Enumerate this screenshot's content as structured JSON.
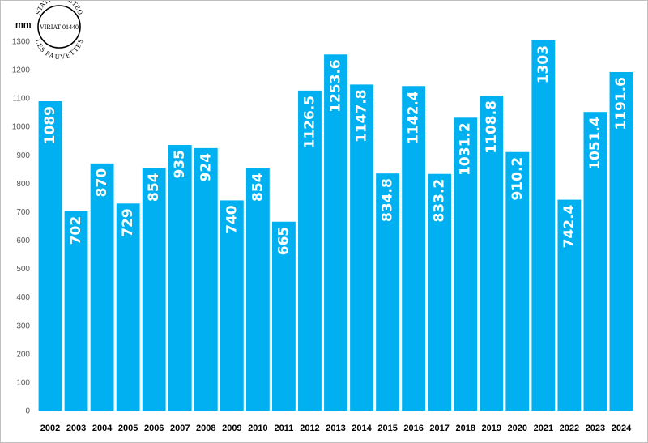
{
  "chart_data": {
    "type": "bar",
    "title": "",
    "xlabel": "",
    "ylabel": "mm",
    "ylim": [
      0,
      1300
    ],
    "yticks": [
      0,
      100,
      200,
      300,
      400,
      500,
      600,
      700,
      800,
      900,
      1000,
      1100,
      1200,
      1300
    ],
    "grid": false,
    "legend": "none",
    "bar_color": "#00B0F0",
    "label_color": "#FFFFFF",
    "categories": [
      "2002",
      "2003",
      "2004",
      "2005",
      "2006",
      "2007",
      "2008",
      "2009",
      "2010",
      "2011",
      "2012",
      "2013",
      "2014",
      "2015",
      "2016",
      "2017",
      "2018",
      "2019",
      "2020",
      "2021",
      "2022",
      "2023",
      "2024"
    ],
    "values": [
      1089,
      702,
      870,
      729,
      854,
      935,
      924,
      740,
      854,
      665,
      1126.5,
      1253.6,
      1147.8,
      834.8,
      1142.4,
      833.2,
      1031.2,
      1108.8,
      910.2,
      1303,
      742.4,
      1051.4,
      1191.6
    ],
    "data_labels": [
      "1089",
      "702",
      "870",
      "729",
      "854",
      "935",
      "924",
      "740",
      "854",
      "665",
      "1126.5",
      "1253.6",
      "1147.8",
      "834.8",
      "1142.4",
      "833.2",
      "1031.2",
      "1108.8",
      "910.2",
      "1303",
      "742.4",
      "1051.4",
      "1191.6"
    ]
  },
  "stamp": {
    "top_text": "STATION METEO",
    "middle_text": "VIRIAT 01440",
    "bottom_text": "LES FAUVETTES"
  }
}
